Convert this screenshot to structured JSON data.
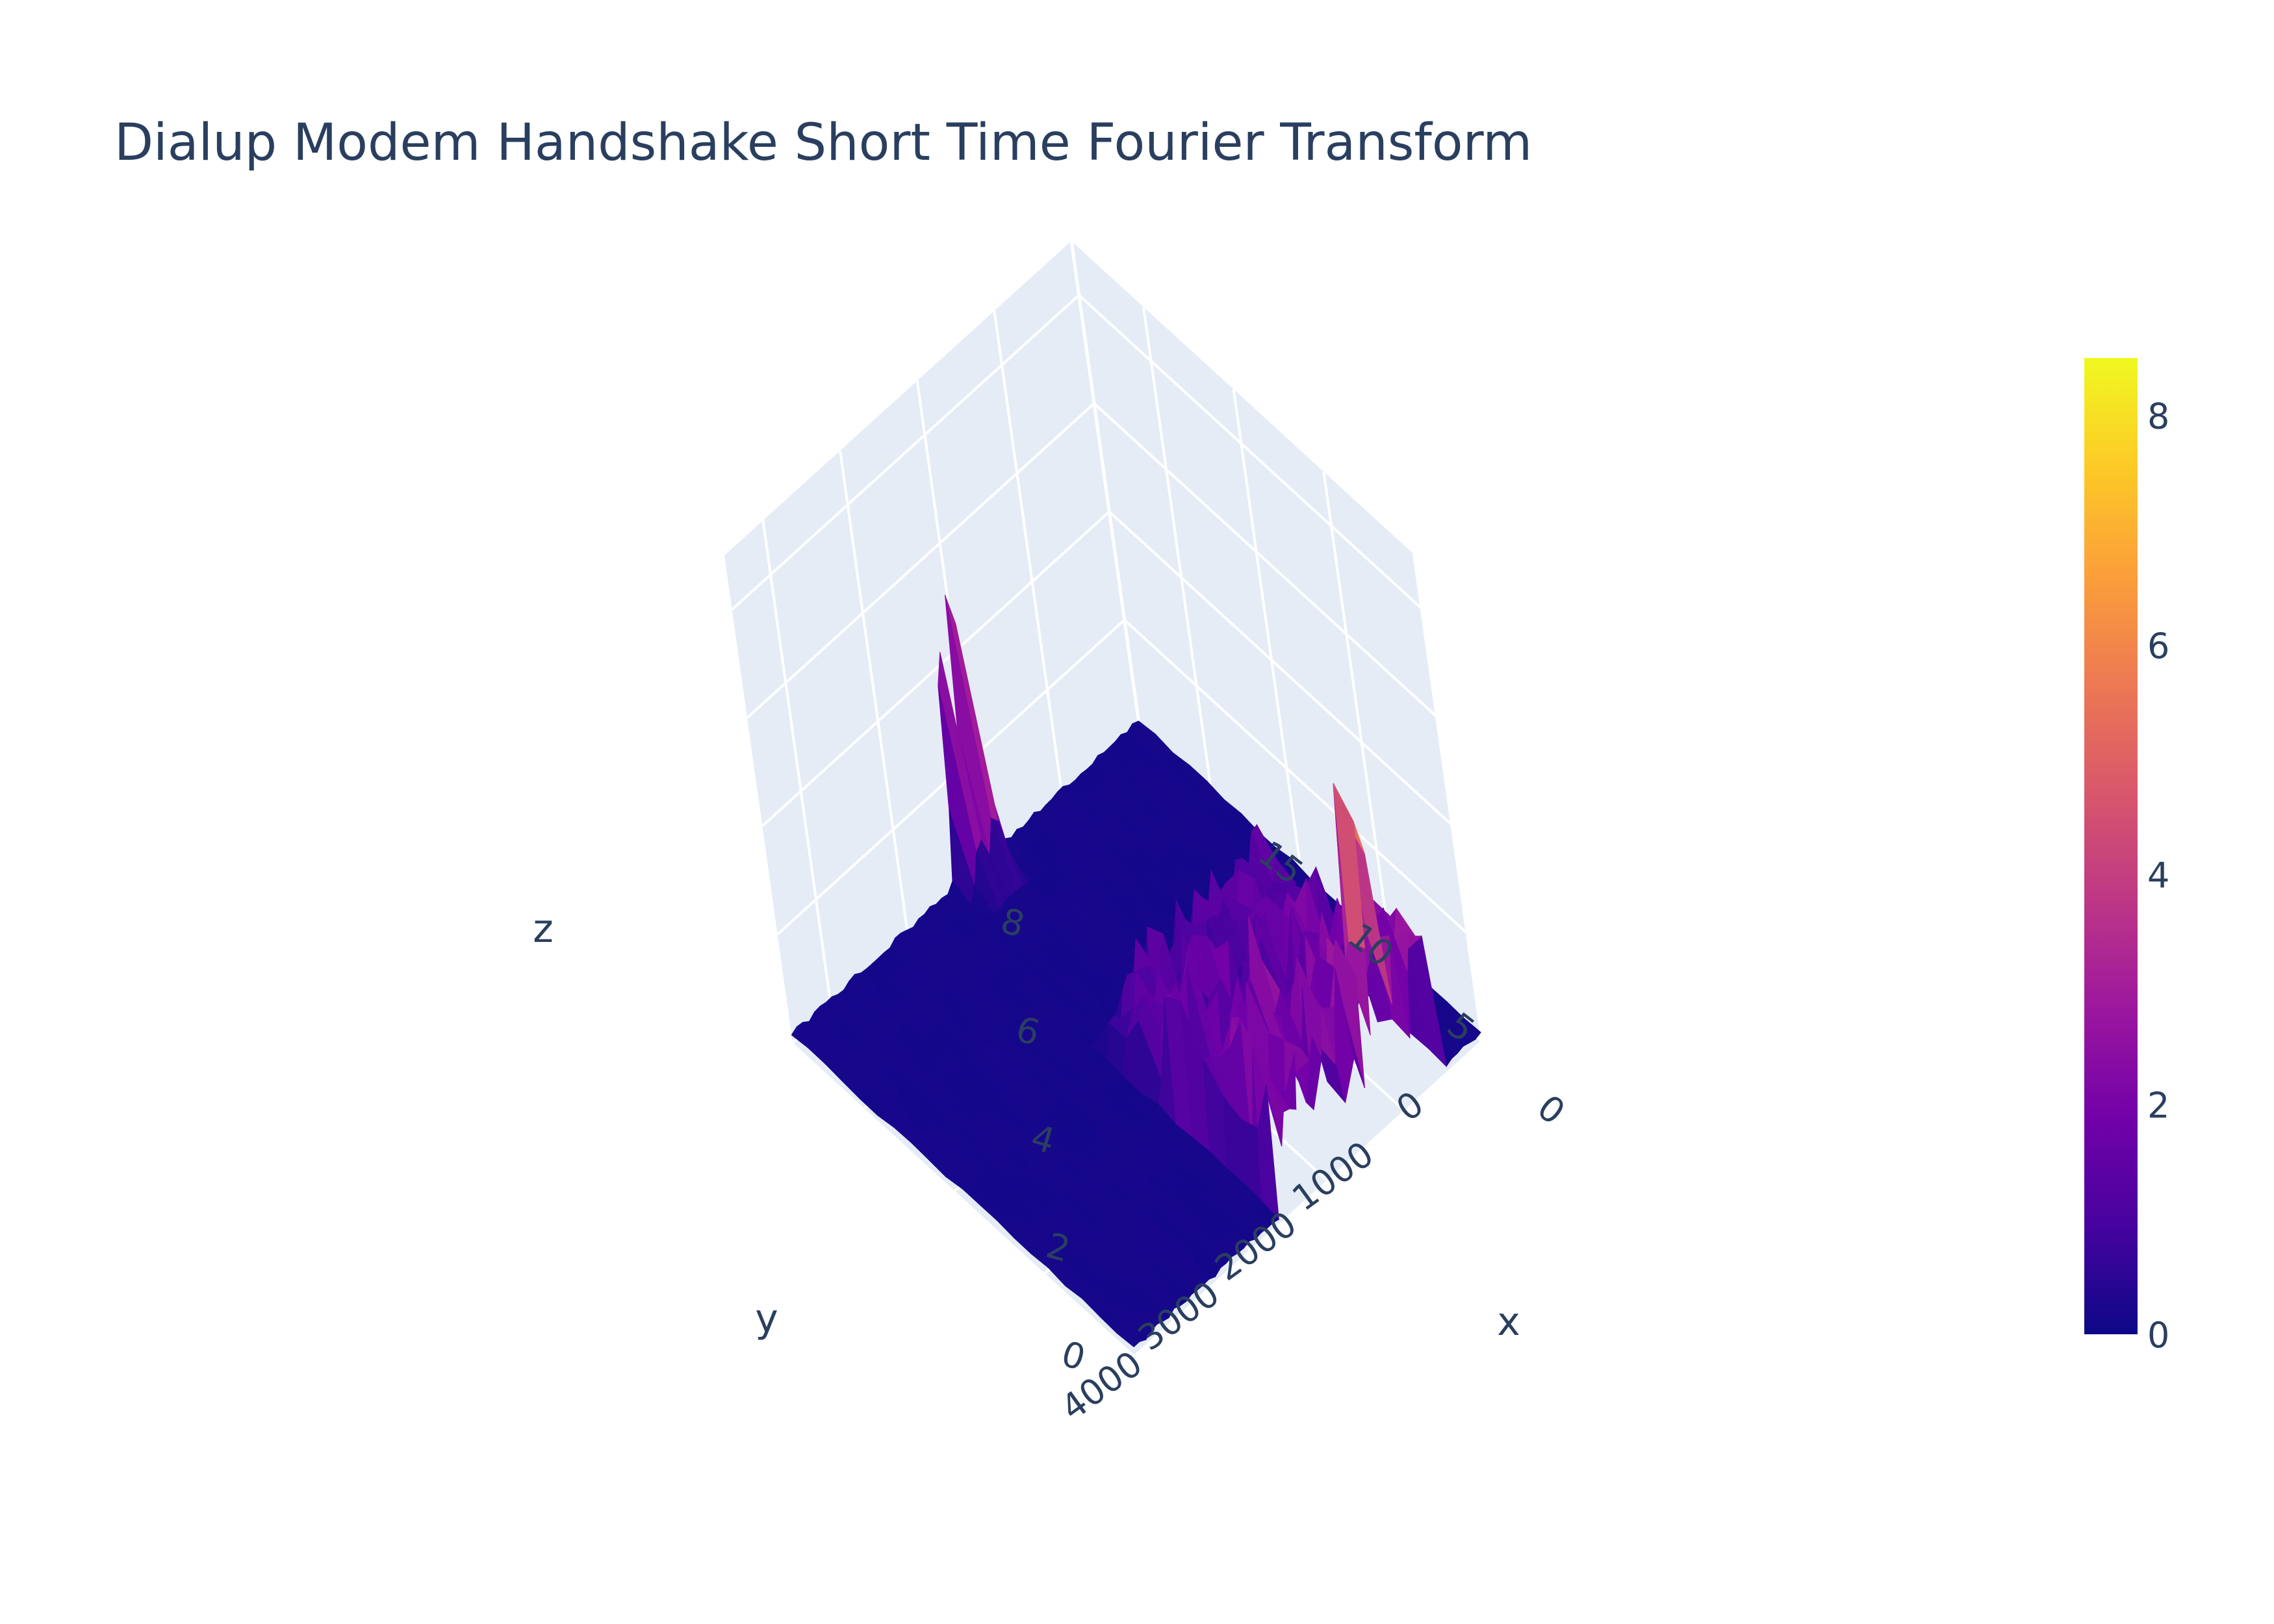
{
  "chart_data": {
    "type": "surface",
    "title": "Dialup Modem Handshake Short Time Fourier Transform",
    "xlabel": "x",
    "ylabel": "y",
    "zlabel": "z",
    "xlim": [
      0,
      19
    ],
    "ylim": [
      0,
      4500
    ],
    "zlim": [
      0,
      9
    ],
    "x_ticks": [
      0,
      5,
      10,
      15
    ],
    "y_ticks": [
      0,
      1000,
      2000,
      3000,
      4000
    ],
    "z_ticks": [
      0,
      2,
      4,
      6,
      8
    ],
    "colorscale": "Plasma",
    "colorscale_stops": [
      "#0d0887",
      "#46039f",
      "#7201a8",
      "#9c179e",
      "#bd3786",
      "#d8576b",
      "#ed7953",
      "#fb9f3a",
      "#fdca26",
      "#f0f921"
    ],
    "colorbar": {
      "range": [
        0,
        8.5
      ],
      "ticks": [
        0,
        2,
        4,
        6,
        8
      ]
    },
    "peaks": [
      {
        "x": 0.5,
        "y": 1100,
        "z": 8.5
      },
      {
        "x": 19.0,
        "y": 2000,
        "z": 5.3
      },
      {
        "x": 19.0,
        "y": 2200,
        "z": 4.4
      },
      {
        "x": 3.5,
        "y": 1800,
        "z": 4.0
      },
      {
        "x": 6.0,
        "y": 2200,
        "z": 3.5
      },
      {
        "x": 4.5,
        "y": 900,
        "z": 3.0
      }
    ],
    "active_region": {
      "x": [
        0,
        10
      ],
      "y": [
        500,
        2600
      ],
      "typical_z": [
        0.5,
        3.5
      ]
    },
    "background_level": 0.1
  }
}
